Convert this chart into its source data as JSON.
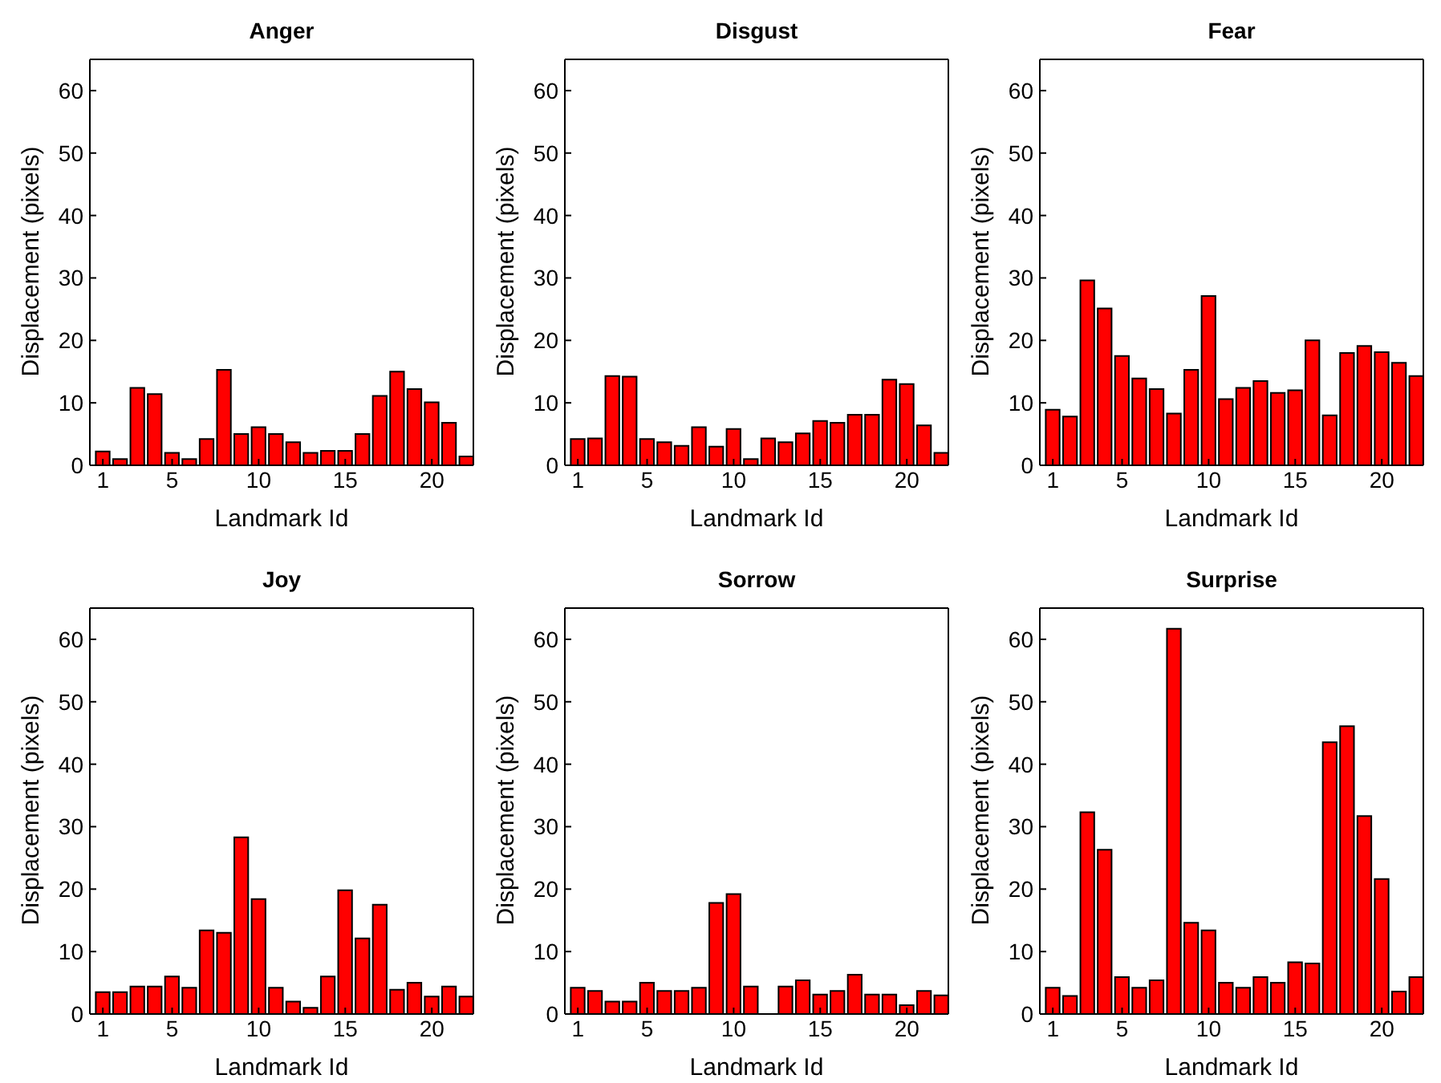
{
  "chart_data": [
    {
      "type": "bar",
      "title": "Anger",
      "xlabel": "Landmark Id",
      "ylabel": "Displacement (pixels)",
      "x": [
        1,
        2,
        3,
        4,
        5,
        6,
        7,
        8,
        9,
        10,
        11,
        12,
        13,
        14,
        15,
        16,
        17,
        18,
        19,
        20,
        21,
        22
      ],
      "values": [
        2.2,
        1.0,
        12.4,
        11.4,
        2.0,
        1.0,
        4.2,
        15.3,
        5.0,
        6.1,
        5.0,
        3.7,
        2.0,
        2.3,
        2.3,
        5.0,
        11.1,
        15.0,
        12.2,
        10.1,
        6.8,
        1.4
      ],
      "color": "#ff0000",
      "xlim": [
        0.25,
        22.4
      ],
      "xticks": [
        1,
        5,
        10,
        15,
        20
      ],
      "ylim": [
        0,
        65
      ],
      "yticks": [
        0,
        10,
        20,
        30,
        40,
        50,
        60
      ]
    },
    {
      "type": "bar",
      "title": "Disgust",
      "xlabel": "Landmark Id",
      "ylabel": "Displacement (pixels)",
      "x": [
        1,
        2,
        3,
        4,
        5,
        6,
        7,
        8,
        9,
        10,
        11,
        12,
        13,
        14,
        15,
        16,
        17,
        18,
        19,
        20,
        21,
        22
      ],
      "values": [
        4.2,
        4.3,
        14.3,
        14.2,
        4.2,
        3.7,
        3.1,
        6.1,
        3.0,
        5.8,
        1.0,
        4.3,
        3.7,
        5.1,
        7.1,
        6.8,
        8.1,
        8.1,
        13.7,
        13.0,
        6.4,
        2.0
      ],
      "color": "#ff0000",
      "xlim": [
        0.25,
        22.4
      ],
      "xticks": [
        1,
        5,
        10,
        15,
        20
      ],
      "ylim": [
        0,
        65
      ],
      "yticks": [
        0,
        10,
        20,
        30,
        40,
        50,
        60
      ]
    },
    {
      "type": "bar",
      "title": "Fear",
      "xlabel": "Landmark Id",
      "ylabel": "Displacement (pixels)",
      "x": [
        1,
        2,
        3,
        4,
        5,
        6,
        7,
        8,
        9,
        10,
        11,
        12,
        13,
        14,
        15,
        16,
        17,
        18,
        19,
        20,
        21,
        22
      ],
      "values": [
        8.9,
        7.8,
        29.6,
        25.1,
        17.5,
        13.9,
        12.2,
        8.3,
        15.3,
        27.1,
        10.6,
        12.4,
        13.5,
        11.6,
        12.0,
        20.0,
        8.0,
        18.0,
        19.1,
        18.1,
        16.4,
        14.3
      ],
      "color": "#ff0000",
      "xlim": [
        0.25,
        22.4
      ],
      "xticks": [
        1,
        5,
        10,
        15,
        20
      ],
      "ylim": [
        0,
        65
      ],
      "yticks": [
        0,
        10,
        20,
        30,
        40,
        50,
        60
      ]
    },
    {
      "type": "bar",
      "title": "Joy",
      "xlabel": "Landmark Id",
      "ylabel": "Displacement (pixels)",
      "x": [
        1,
        2,
        3,
        4,
        5,
        6,
        7,
        8,
        9,
        10,
        11,
        12,
        13,
        14,
        15,
        16,
        17,
        18,
        19,
        20,
        21,
        22
      ],
      "values": [
        3.5,
        3.5,
        4.4,
        4.4,
        6.0,
        4.2,
        13.4,
        13.0,
        28.3,
        18.4,
        4.2,
        2.0,
        1.0,
        6.0,
        19.8,
        12.1,
        17.5,
        3.9,
        5.0,
        2.8,
        4.4,
        2.8
      ],
      "color": "#ff0000",
      "xlim": [
        0.25,
        22.4
      ],
      "xticks": [
        1,
        5,
        10,
        15,
        20
      ],
      "ylim": [
        0,
        65
      ],
      "yticks": [
        0,
        10,
        20,
        30,
        40,
        50,
        60
      ]
    },
    {
      "type": "bar",
      "title": "Sorrow",
      "xlabel": "Landmark Id",
      "ylabel": "Displacement (pixels)",
      "x": [
        1,
        2,
        3,
        4,
        5,
        6,
        7,
        8,
        9,
        10,
        11,
        12,
        13,
        14,
        15,
        16,
        17,
        18,
        19,
        20,
        21,
        22
      ],
      "values": [
        4.2,
        3.7,
        2.0,
        2.0,
        5.0,
        3.7,
        3.7,
        4.2,
        17.8,
        19.2,
        4.4,
        0,
        4.4,
        5.4,
        3.1,
        3.7,
        6.3,
        3.1,
        3.1,
        1.4,
        3.7,
        3.0
      ],
      "color": "#ff0000",
      "xlim": [
        0.25,
        22.4
      ],
      "xticks": [
        1,
        5,
        10,
        15,
        20
      ],
      "ylim": [
        0,
        65
      ],
      "yticks": [
        0,
        10,
        20,
        30,
        40,
        50,
        60
      ]
    },
    {
      "type": "bar",
      "title": "Surprise",
      "xlabel": "Landmark Id",
      "ylabel": "Displacement (pixels)",
      "x": [
        1,
        2,
        3,
        4,
        5,
        6,
        7,
        8,
        9,
        10,
        11,
        12,
        13,
        14,
        15,
        16,
        17,
        18,
        19,
        20,
        21,
        22
      ],
      "values": [
        4.2,
        2.9,
        32.3,
        26.3,
        5.9,
        4.2,
        5.4,
        61.7,
        14.6,
        13.4,
        5.0,
        4.2,
        5.9,
        5.0,
        8.3,
        8.1,
        43.5,
        46.1,
        31.7,
        21.6,
        3.6,
        5.9
      ],
      "color": "#ff0000",
      "xlim": [
        0.25,
        22.4
      ],
      "xticks": [
        1,
        5,
        10,
        15,
        20
      ],
      "ylim": [
        0,
        65
      ],
      "yticks": [
        0,
        10,
        20,
        30,
        40,
        50,
        60
      ]
    }
  ]
}
